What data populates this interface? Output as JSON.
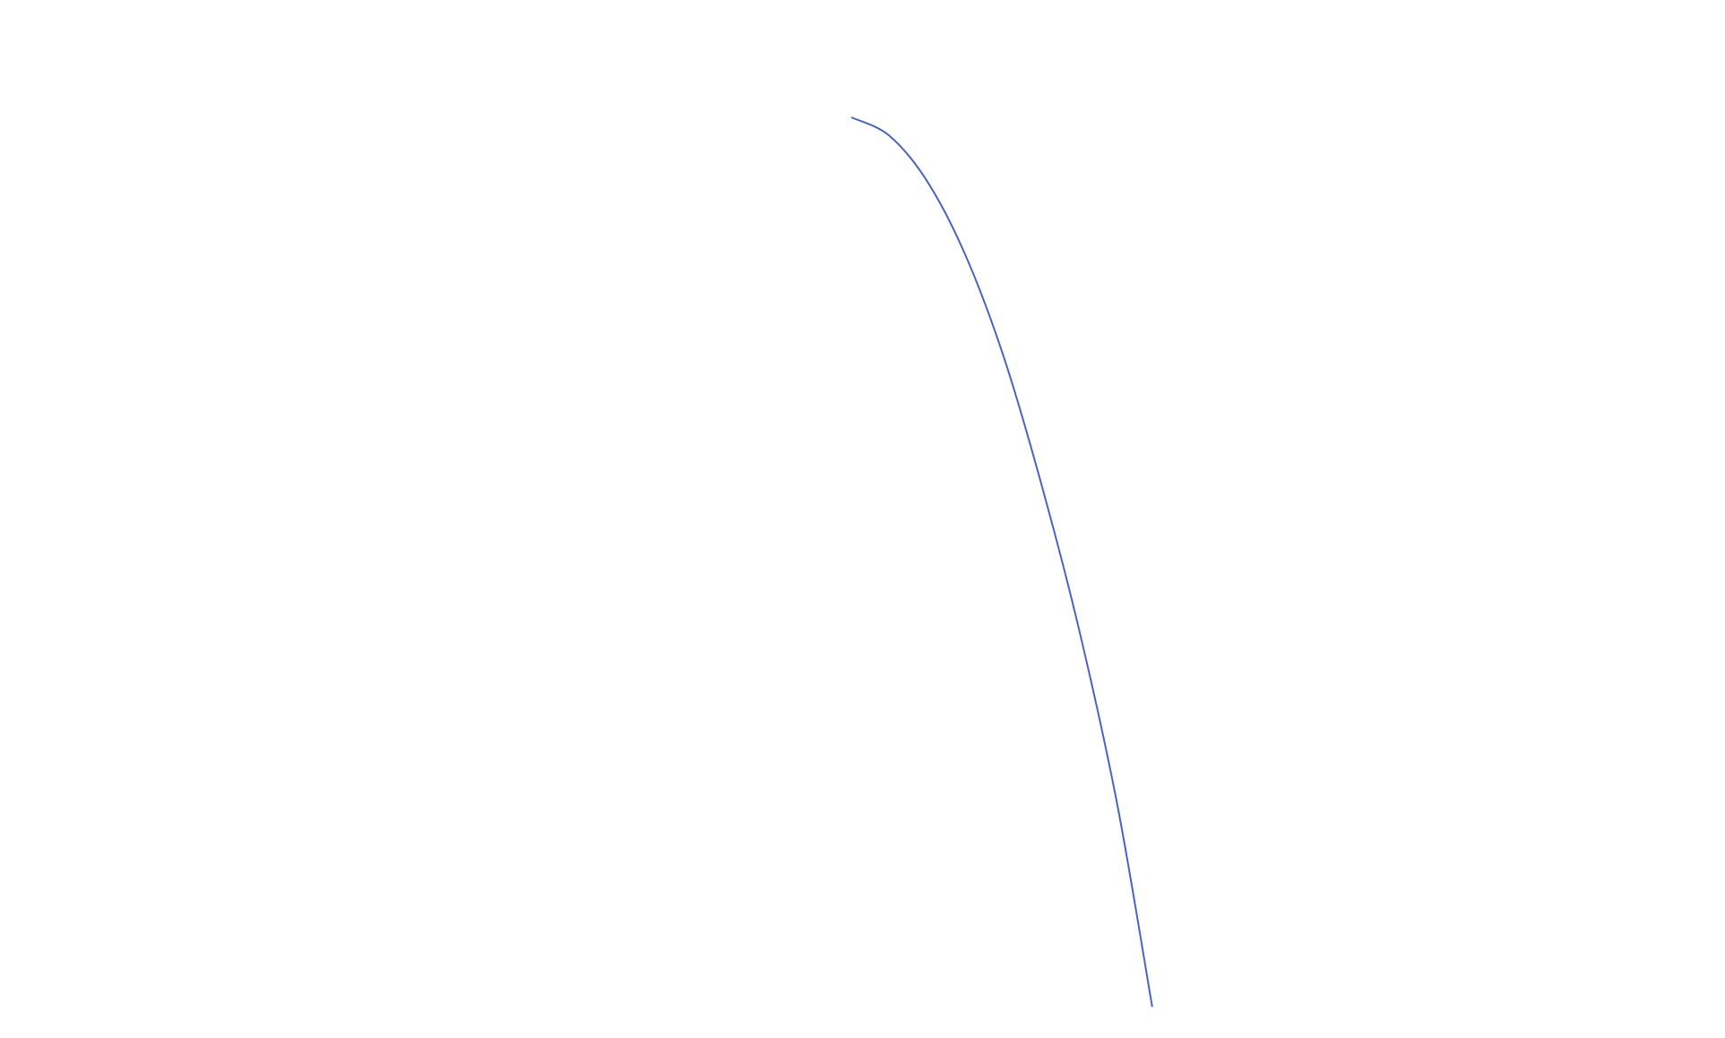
{
  "chart_data": {
    "type": "line",
    "title": "",
    "xlabel": "",
    "ylabel": "",
    "grid": false,
    "axes_visible": false,
    "xlim": [
      0,
      10
    ],
    "ylim": [
      0,
      10
    ],
    "series": [
      {
        "color": "#4a64c0",
        "points": [
          [
            0.0,
            10.0
          ],
          [
            0.6,
            9.8
          ],
          [
            1.2,
            9.3
          ],
          [
            1.8,
            8.5
          ],
          [
            2.4,
            7.4
          ],
          [
            3.0,
            6.0
          ],
          [
            3.6,
            4.4
          ],
          [
            4.2,
            2.5
          ],
          [
            4.75,
            0.3
          ]
        ]
      }
    ]
  }
}
